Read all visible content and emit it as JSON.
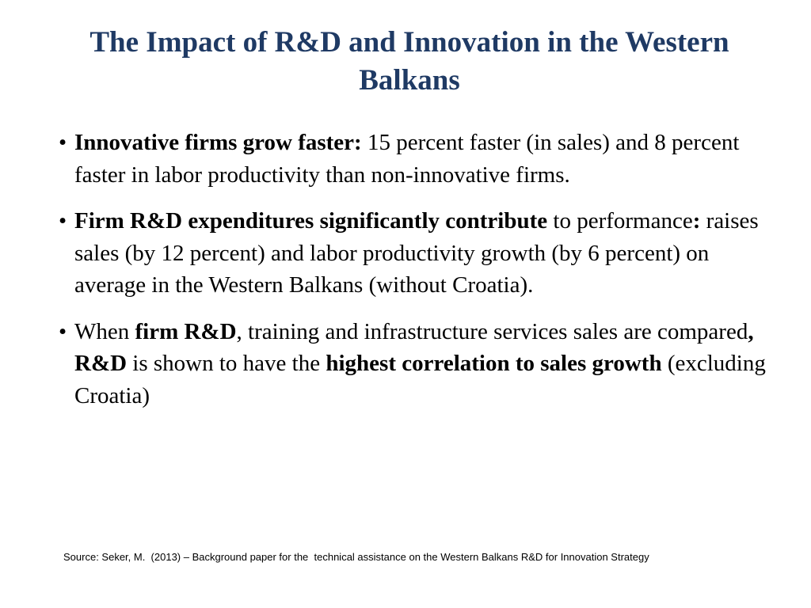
{
  "slide": {
    "title": "The Impact of R&D and Innovation in the Western Balkans",
    "bullets": [
      {
        "segments": [
          {
            "text": "Innovative firms grow faster:",
            "bold": true
          },
          {
            "text": " 15 percent faster (in sales) and 8 percent faster in labor productivity than non-innovative firms.",
            "bold": false
          }
        ]
      },
      {
        "segments": [
          {
            "text": " Firm R&D expenditures significantly contribute",
            "bold": true
          },
          {
            "text": " to performance",
            "bold": false
          },
          {
            "text": ":",
            "bold": true
          },
          {
            "text": " raises sales (by 12 percent) and labor productivity growth (by 6 percent) on average in the Western Balkans (without Croatia).",
            "bold": false
          }
        ]
      },
      {
        "segments": [
          {
            "text": " When ",
            "bold": false
          },
          {
            "text": "firm R&D",
            "bold": true
          },
          {
            "text": ", training and infrastructure services sales are compared",
            "bold": false
          },
          {
            "text": ", R&D",
            "bold": true
          },
          {
            "text": " is shown to have the ",
            "bold": false
          },
          {
            "text": "highest correlation to sales growth",
            "bold": true
          },
          {
            "text": " (excluding Croatia)",
            "bold": false
          }
        ]
      }
    ],
    "bullet_symbol": "•",
    "source": "Source: Seker, M.  (2013) – Background paper for the  technical assistance on the Western Balkans R&D for Innovation Strategy",
    "colors": {
      "title": "#1f3a64",
      "body": "#000000",
      "background": "#ffffff"
    }
  }
}
